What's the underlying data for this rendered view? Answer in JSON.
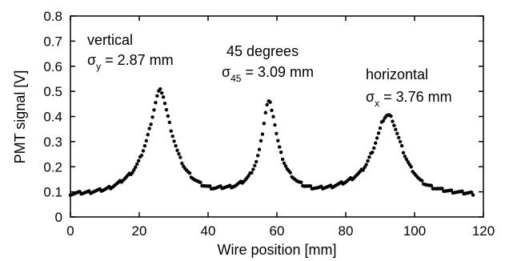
{
  "chart_data": {
    "type": "scatter",
    "xlabel": "Wire position [mm]",
    "ylabel": "PMT signal [V]",
    "xlim": [
      0,
      120
    ],
    "ylim": [
      0,
      0.8
    ],
    "xticks": [
      0,
      20,
      40,
      60,
      80,
      100,
      120
    ],
    "yticks": [
      0,
      0.1,
      0.2,
      0.3,
      0.4,
      0.5,
      0.6,
      0.7,
      0.8
    ],
    "xtick_labels": [
      "0",
      "20",
      "40",
      "60",
      "80",
      "100",
      "120"
    ],
    "ytick_labels": [
      "0",
      "0.1",
      "0.2",
      "0.3",
      "0.4",
      "0.5",
      "0.6",
      "0.7",
      "0.8"
    ],
    "grid": false,
    "marker_color": "#000000",
    "annotations": [
      {
        "label": "vertical",
        "sigma_base": "σ",
        "sigma_sub": "y",
        "sigma_value": " = 2.87 mm"
      },
      {
        "label": "45 degrees",
        "sigma_base": "σ",
        "sigma_sub": "45",
        "sigma_value": " = 3.09 mm"
      },
      {
        "label": "horizontal",
        "sigma_base": "σ",
        "sigma_sub": "x",
        "sigma_value": " = 3.76 mm"
      }
    ],
    "series": [
      {
        "x": [
          0,
          2,
          4,
          6,
          8,
          10,
          12,
          14,
          16,
          18,
          19,
          20,
          21,
          22,
          23,
          24,
          24.5,
          25,
          25.5,
          26,
          26.5,
          27,
          27.5,
          28,
          29,
          30,
          31,
          32,
          33,
          34,
          35,
          36,
          38,
          40,
          42,
          44,
          46,
          48,
          50,
          51,
          52,
          53,
          54,
          55,
          55.5,
          56,
          56.5,
          57,
          57.5,
          58,
          58.5,
          59,
          59.5,
          60,
          61,
          62,
          63,
          64,
          65,
          66,
          68,
          70,
          72,
          74,
          76,
          78,
          80,
          82,
          84,
          85,
          86,
          87,
          88,
          89,
          90,
          90.5,
          91,
          91.5,
          92,
          92.5,
          93,
          93.5,
          94,
          94.5,
          95,
          96,
          97,
          98,
          99,
          100,
          101,
          102,
          104,
          106,
          108,
          110,
          112,
          114,
          116,
          117
        ],
        "y": [
          0.092,
          0.095,
          0.097,
          0.1,
          0.105,
          0.11,
          0.12,
          0.135,
          0.155,
          0.18,
          0.2,
          0.225,
          0.26,
          0.3,
          0.35,
          0.41,
          0.44,
          0.47,
          0.495,
          0.505,
          0.5,
          0.48,
          0.45,
          0.42,
          0.36,
          0.31,
          0.265,
          0.23,
          0.2,
          0.18,
          0.165,
          0.15,
          0.13,
          0.12,
          0.115,
          0.118,
          0.12,
          0.125,
          0.14,
          0.15,
          0.165,
          0.19,
          0.22,
          0.27,
          0.31,
          0.35,
          0.4,
          0.44,
          0.46,
          0.455,
          0.43,
          0.4,
          0.36,
          0.32,
          0.26,
          0.22,
          0.19,
          0.17,
          0.155,
          0.14,
          0.125,
          0.118,
          0.115,
          0.118,
          0.122,
          0.13,
          0.14,
          0.155,
          0.175,
          0.19,
          0.21,
          0.24,
          0.27,
          0.31,
          0.35,
          0.375,
          0.39,
          0.4,
          0.405,
          0.405,
          0.4,
          0.39,
          0.37,
          0.35,
          0.33,
          0.29,
          0.25,
          0.22,
          0.195,
          0.175,
          0.155,
          0.14,
          0.125,
          0.115,
          0.108,
          0.103,
          0.1,
          0.097,
          0.095,
          0.093
        ]
      }
    ]
  }
}
